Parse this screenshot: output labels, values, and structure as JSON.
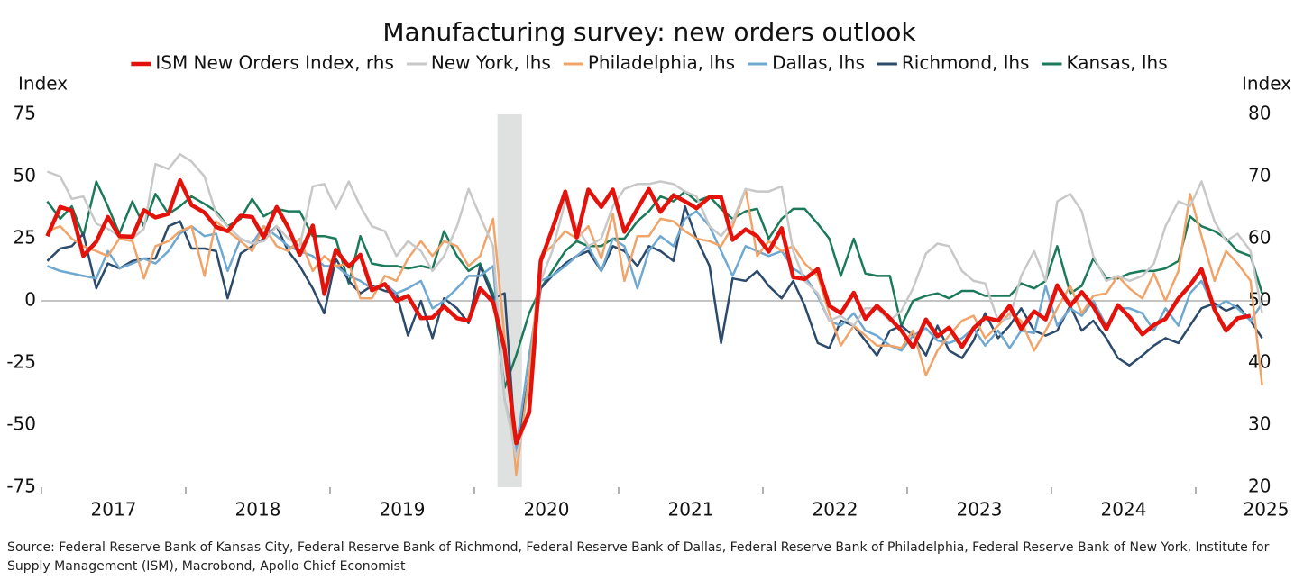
{
  "chart_data": {
    "type": "line",
    "title": "Manufacturing survey: new orders outlook",
    "ylabel": "Index",
    "y2label": "Index",
    "source": "Source: Federal Reserve Bank of Kansas City, Federal Reserve Bank of Richmond, Federal Reserve Bank of Dallas, Federal Reserve Bank of Philadelphia, Federal Reserve Bank of New York, Institute for Supply Management (ISM), Macrobond, Apollo Chief Economist",
    "legend": "top",
    "grid": false,
    "shading": [
      2020.16,
      2020.33
    ],
    "xlim": [
      2017,
      2025.5
    ],
    "xticks": [
      2017,
      2018,
      2019,
      2020,
      2021,
      2022,
      2023,
      2024,
      2025
    ],
    "ylim": [
      -75,
      75
    ],
    "yticks": [
      -75,
      -50,
      -25,
      0,
      25,
      50,
      75
    ],
    "y2lim": [
      20,
      80
    ],
    "y2ticks": [
      20,
      30,
      40,
      50,
      60,
      70,
      80
    ],
    "x": [
      2017.04,
      2017.13,
      2017.21,
      2017.29,
      2017.38,
      2017.46,
      2017.54,
      2017.63,
      2017.71,
      2017.79,
      2017.88,
      2017.96,
      2018.04,
      2018.13,
      2018.21,
      2018.29,
      2018.38,
      2018.46,
      2018.54,
      2018.63,
      2018.71,
      2018.79,
      2018.88,
      2018.96,
      2019.04,
      2019.13,
      2019.21,
      2019.29,
      2019.38,
      2019.46,
      2019.54,
      2019.63,
      2019.71,
      2019.79,
      2019.88,
      2019.96,
      2020.04,
      2020.13,
      2020.21,
      2020.29,
      2020.38,
      2020.46,
      2020.54,
      2020.63,
      2020.71,
      2020.79,
      2020.88,
      2020.96,
      2021.04,
      2021.13,
      2021.21,
      2021.29,
      2021.38,
      2021.46,
      2021.54,
      2021.63,
      2021.71,
      2021.79,
      2021.88,
      2021.96,
      2022.04,
      2022.13,
      2022.21,
      2022.29,
      2022.38,
      2022.46,
      2022.54,
      2022.63,
      2022.71,
      2022.79,
      2022.88,
      2022.96,
      2023.04,
      2023.13,
      2023.21,
      2023.29,
      2023.38,
      2023.46,
      2023.54,
      2023.63,
      2023.71,
      2023.79,
      2023.88,
      2023.96,
      2024.04,
      2024.13,
      2024.21,
      2024.29,
      2024.38,
      2024.46,
      2024.54,
      2024.63,
      2024.71,
      2024.79,
      2024.88,
      2024.96,
      2025.04,
      2025.13,
      2025.21,
      2025.29,
      2025.38,
      2025.46
    ],
    "series": [
      {
        "name": "ISM New Orders Index, rhs",
        "color": "#e3120b",
        "axis": "y2",
        "values": [
          60.4,
          65.1,
          64.5,
          57.2,
          59.5,
          63.5,
          60.4,
          60.3,
          64.6,
          63.4,
          64.0,
          69.4,
          65.4,
          64.2,
          61.9,
          61.2,
          63.7,
          63.5,
          60.2,
          65.1,
          61.8,
          57.4,
          62.1,
          51.1,
          58.2,
          55.5,
          57.4,
          51.7,
          52.7,
          50.0,
          50.8,
          47.2,
          47.3,
          49.1,
          47.2,
          46.8,
          52.0,
          49.8,
          42.2,
          27.1,
          32.0,
          56.4,
          61.5,
          67.6,
          60.2,
          67.9,
          65.1,
          67.9,
          61.1,
          64.8,
          68.0,
          64.3,
          67.0,
          66.0,
          64.9,
          66.7,
          66.7,
          59.8,
          61.5,
          60.4,
          57.9,
          61.7,
          53.8,
          53.5,
          55.1,
          49.2,
          48.0,
          51.3,
          47.1,
          49.2,
          47.2,
          45.2,
          42.5,
          47.0,
          44.3,
          45.7,
          42.6,
          45.6,
          47.3,
          46.8,
          49.2,
          45.5,
          48.3,
          47.0,
          52.5,
          49.2,
          51.4,
          49.1,
          45.4,
          49.3,
          47.4,
          44.6,
          46.1,
          47.1,
          50.4,
          52.5,
          55.1,
          48.6,
          45.2,
          47.2,
          47.6,
          null
        ]
      },
      {
        "name": "New York, lhs",
        "color": "#c8c8c8",
        "values": [
          52,
          50,
          41,
          42,
          31,
          29,
          26,
          25,
          29,
          55,
          53,
          59,
          56,
          50,
          35,
          30,
          25,
          23,
          24,
          30,
          25,
          22,
          46,
          47,
          37,
          48,
          38,
          30,
          28,
          18,
          24,
          20,
          12,
          18,
          30,
          45,
          34,
          22,
          -40,
          -63,
          -42,
          8,
          20,
          40,
          30,
          22,
          25,
          38,
          45,
          47,
          47,
          48,
          47,
          44,
          42,
          30,
          26,
          32,
          45,
          44,
          44,
          46,
          20,
          8,
          3,
          -8,
          -6,
          -10,
          -3,
          -3,
          -8,
          -4,
          5,
          19,
          23,
          22,
          12,
          8,
          7,
          -8,
          -7,
          10,
          20,
          8,
          40,
          43,
          36,
          18,
          8,
          10,
          8,
          10,
          15,
          30,
          40,
          38,
          48,
          32,
          24,
          27,
          20,
          -5
        ]
      },
      {
        "name": "Philadelphia, lhs",
        "color": "#f0a46a",
        "values": [
          28,
          30,
          25,
          22,
          20,
          18,
          25,
          24,
          9,
          22,
          24,
          28,
          30,
          10,
          32,
          28,
          24,
          20,
          30,
          22,
          20,
          25,
          12,
          18,
          14,
          15,
          1,
          1,
          10,
          8,
          17,
          24,
          18,
          24,
          22,
          14,
          18,
          33,
          -15,
          -70,
          -30,
          18,
          22,
          28,
          25,
          30,
          17,
          35,
          8,
          26,
          26,
          33,
          32,
          28,
          25,
          24,
          22,
          30,
          45,
          18,
          24,
          20,
          22,
          15,
          10,
          -5,
          -18,
          -10,
          -14,
          -18,
          -18,
          -19,
          -12,
          -30,
          -20,
          -14,
          -8,
          -6,
          -15,
          -10,
          -5,
          -8,
          -20,
          -12,
          -3,
          6,
          -5,
          2,
          3,
          10,
          5,
          1,
          11,
          0,
          12,
          43,
          26,
          8,
          20,
          15,
          8,
          -34
        ]
      },
      {
        "name": "Dallas, lhs",
        "color": "#6fa8d0",
        "values": [
          14,
          12,
          11,
          10,
          9,
          20,
          13,
          15,
          17,
          15,
          20,
          27,
          30,
          26,
          27,
          12,
          25,
          23,
          30,
          26,
          22,
          20,
          18,
          14,
          14,
          10,
          8,
          5,
          7,
          3,
          5,
          8,
          -3,
          0,
          5,
          10,
          10,
          14,
          -40,
          -60,
          -22,
          8,
          10,
          14,
          18,
          22,
          12,
          25,
          22,
          5,
          20,
          26,
          22,
          33,
          36,
          30,
          20,
          10,
          22,
          20,
          18,
          20,
          13,
          10,
          2,
          -8,
          -10,
          -5,
          -12,
          -14,
          -18,
          -20,
          -14,
          -11,
          -16,
          -17,
          -15,
          -11,
          -18,
          -12,
          -19,
          -12,
          -13,
          6,
          -10,
          -3,
          -6,
          0,
          -10,
          -3,
          -3,
          -5,
          -12,
          -3,
          -10,
          3,
          8,
          -3,
          0,
          -3,
          -8,
          -1
        ]
      },
      {
        "name": "Richmond, lhs",
        "color": "#2c4a6b",
        "values": [
          16,
          21,
          22,
          27,
          5,
          15,
          13,
          16,
          17,
          17,
          30,
          32,
          21,
          21,
          20,
          1,
          19,
          22,
          25,
          30,
          20,
          14,
          5,
          -5,
          17,
          8,
          3,
          6,
          4,
          3,
          -14,
          0,
          -15,
          1,
          -3,
          -9,
          14,
          1,
          3,
          -62,
          -30,
          5,
          10,
          15,
          18,
          20,
          12,
          22,
          20,
          14,
          22,
          20,
          16,
          38,
          25,
          14,
          -17,
          9,
          8,
          12,
          6,
          1,
          8,
          -2,
          -17,
          -19,
          -8,
          -10,
          -16,
          -22,
          -12,
          -10,
          -14,
          -22,
          -10,
          -20,
          -23,
          -16,
          -5,
          -15,
          -10,
          -3,
          -12,
          -14,
          -12,
          -2,
          -12,
          -8,
          -15,
          -23,
          -26,
          -22,
          -18,
          -15,
          -17,
          -10,
          -3,
          -1,
          -4,
          -2,
          -8,
          -15
        ]
      },
      {
        "name": "Kansas, lhs",
        "color": "#1a7a5a",
        "values": [
          40,
          33,
          38,
          26,
          48,
          38,
          27,
          40,
          30,
          43,
          35,
          38,
          42,
          39,
          36,
          30,
          33,
          41,
          34,
          37,
          36,
          36,
          26,
          26,
          25,
          7,
          26,
          15,
          14,
          14,
          13,
          14,
          13,
          28,
          18,
          12,
          15,
          3,
          -35,
          -22,
          -5,
          5,
          12,
          20,
          24,
          22,
          22,
          25,
          25,
          32,
          36,
          42,
          40,
          44,
          40,
          42,
          37,
          33,
          36,
          37,
          25,
          33,
          37,
          37,
          31,
          25,
          10,
          25,
          11,
          10,
          10,
          -10,
          0,
          2,
          3,
          1,
          4,
          4,
          2,
          2,
          2,
          7,
          5,
          8,
          22,
          3,
          6,
          17,
          9,
          9,
          11,
          12,
          12,
          13,
          16,
          34,
          30,
          28,
          25,
          20,
          18,
          3
        ]
      }
    ]
  }
}
